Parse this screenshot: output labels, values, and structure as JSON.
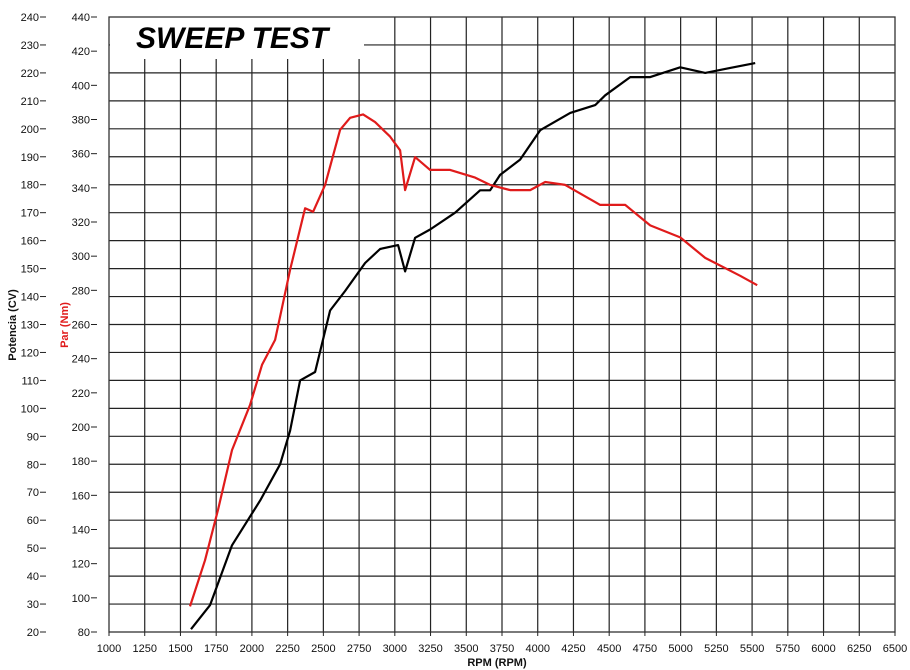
{
  "chart_data": {
    "type": "line",
    "title": "SWEEP TEST",
    "xlabel": "RPM (RPM)",
    "ylabel_left": "Potencia (CV)",
    "ylabel_right": "Par (Nm)",
    "xlim": [
      1000,
      6500
    ],
    "ylim_left": [
      20,
      240
    ],
    "ylim_right": [
      80,
      440
    ],
    "x_ticks": [
      1000,
      1250,
      1500,
      1750,
      2000,
      2250,
      2500,
      2750,
      3000,
      3250,
      3500,
      3750,
      4000,
      4250,
      4500,
      4750,
      5000,
      5250,
      5500,
      5750,
      6000,
      6250,
      6500
    ],
    "y_left_ticks": [
      20,
      30,
      40,
      50,
      60,
      70,
      80,
      90,
      100,
      110,
      120,
      130,
      140,
      150,
      160,
      170,
      180,
      190,
      200,
      210,
      220,
      230,
      240
    ],
    "y_right_ticks": [
      80,
      100,
      120,
      140,
      160,
      180,
      200,
      220,
      240,
      260,
      280,
      300,
      320,
      340,
      360,
      380,
      400,
      420,
      440
    ],
    "grid": true,
    "series": [
      {
        "name": "Potencia (CV)",
        "axis": "left",
        "color": "#000000",
        "points": [
          [
            1574,
            21
          ],
          [
            1707,
            29.6
          ],
          [
            1861,
            51
          ],
          [
            2057,
            67
          ],
          [
            2197,
            80
          ],
          [
            2267,
            92
          ],
          [
            2337,
            110
          ],
          [
            2442,
            113
          ],
          [
            2547,
            135
          ],
          [
            2652,
            142
          ],
          [
            2792,
            152
          ],
          [
            2897,
            157
          ],
          [
            3023,
            158.4
          ],
          [
            3072,
            149
          ],
          [
            3142,
            161
          ],
          [
            3247,
            164
          ],
          [
            3422,
            170
          ],
          [
            3597,
            178
          ],
          [
            3667,
            178
          ],
          [
            3737,
            183.5
          ],
          [
            3877,
            189
          ],
          [
            4017,
            199.5
          ],
          [
            4227,
            205.7
          ],
          [
            4402,
            208.5
          ],
          [
            4472,
            212
          ],
          [
            4647,
            218.5
          ],
          [
            4787,
            218.5
          ],
          [
            4997,
            222
          ],
          [
            5172,
            220
          ],
          [
            5347,
            221.8
          ],
          [
            5522,
            223.5
          ]
        ]
      },
      {
        "name": "Par (Nm)",
        "axis": "right",
        "color": "#e01b1b",
        "points": [
          [
            1567,
            95
          ],
          [
            1672,
            122
          ],
          [
            1763,
            151.5
          ],
          [
            1861,
            186.5
          ],
          [
            1987,
            213
          ],
          [
            2071,
            236.5
          ],
          [
            2162,
            251
          ],
          [
            2267,
            292
          ],
          [
            2372,
            328
          ],
          [
            2428,
            326
          ],
          [
            2512,
            341.7
          ],
          [
            2617,
            374
          ],
          [
            2687,
            381
          ],
          [
            2778,
            383
          ],
          [
            2862,
            378.5
          ],
          [
            2967,
            370
          ],
          [
            3037,
            362
          ],
          [
            3072,
            338.7
          ],
          [
            3142,
            358
          ],
          [
            3247,
            350.5
          ],
          [
            3387,
            350.5
          ],
          [
            3562,
            346
          ],
          [
            3667,
            341.7
          ],
          [
            3807,
            338.7
          ],
          [
            3947,
            338.7
          ],
          [
            4052,
            343.4
          ],
          [
            4192,
            341.7
          ],
          [
            4437,
            330
          ],
          [
            4612,
            330
          ],
          [
            4787,
            318
          ],
          [
            4997,
            311
          ],
          [
            5172,
            299
          ],
          [
            5417,
            288.5
          ],
          [
            5536,
            283
          ]
        ]
      }
    ]
  }
}
